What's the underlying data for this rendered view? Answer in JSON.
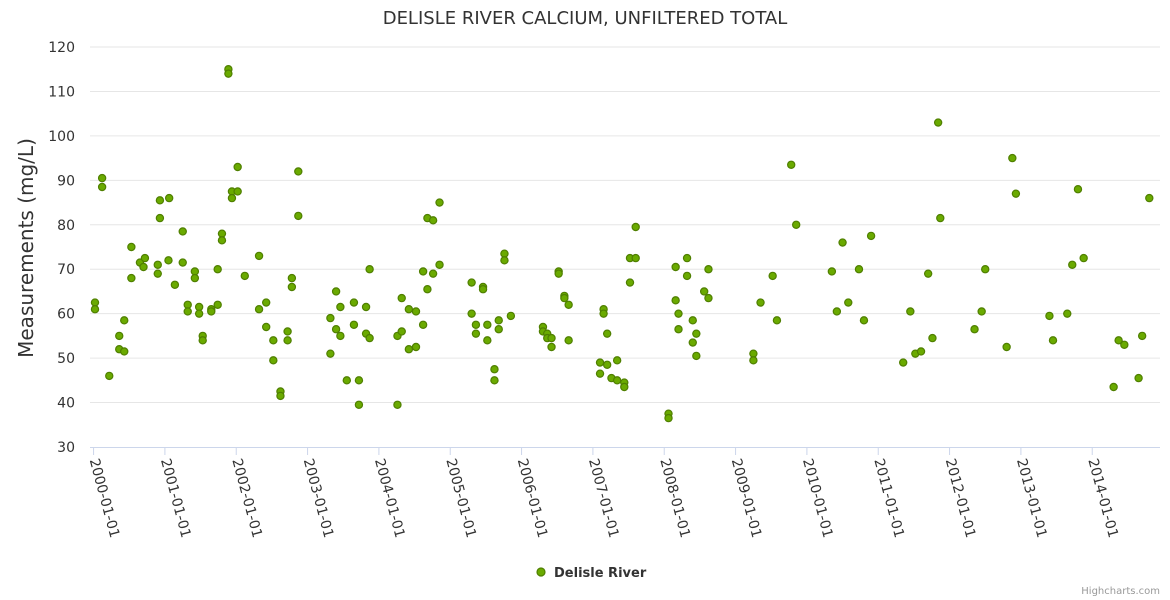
{
  "chart_data": {
    "type": "scatter",
    "title": "DELISLE RIVER CALCIUM, UNFILTERED TOTAL",
    "ylabel": "Measurements (mg/L)",
    "xlabel": "",
    "ylim": [
      30,
      120
    ],
    "yticks": [
      30,
      40,
      50,
      60,
      70,
      80,
      90,
      100,
      110,
      120
    ],
    "xlim": [
      1999.95,
      2014.95
    ],
    "xticks": [
      {
        "value": 2000,
        "label": "2000-01-01"
      },
      {
        "value": 2001,
        "label": "2001-01-01"
      },
      {
        "value": 2002,
        "label": "2002-01-01"
      },
      {
        "value": 2003,
        "label": "2003-01-01"
      },
      {
        "value": 2004,
        "label": "2004-01-01"
      },
      {
        "value": 2005,
        "label": "2005-01-01"
      },
      {
        "value": 2006,
        "label": "2006-01-01"
      },
      {
        "value": 2007,
        "label": "2007-01-01"
      },
      {
        "value": 2008,
        "label": "2008-01-01"
      },
      {
        "value": 2009,
        "label": "2009-01-01"
      },
      {
        "value": 2010,
        "label": "2010-01-01"
      },
      {
        "value": 2011,
        "label": "2011-01-01"
      },
      {
        "value": 2012,
        "label": "2012-01-01"
      },
      {
        "value": 2013,
        "label": "2013-01-01"
      },
      {
        "value": 2014,
        "label": "2014-01-01"
      }
    ],
    "grid": "horizontal",
    "legend_position": "bottom-center",
    "credits": "Highcharts.com",
    "series": [
      {
        "name": "Delisle River",
        "color": "#6aaa00",
        "stroke": "#4f7f00",
        "points": [
          [
            2000.02,
            62.5
          ],
          [
            2000.02,
            61.0
          ],
          [
            2000.12,
            90.5
          ],
          [
            2000.12,
            88.5
          ],
          [
            2000.22,
            46.0
          ],
          [
            2000.36,
            55.0
          ],
          [
            2000.36,
            52.0
          ],
          [
            2000.43,
            51.5
          ],
          [
            2000.43,
            58.5
          ],
          [
            2000.53,
            75.0
          ],
          [
            2000.53,
            68.0
          ],
          [
            2000.65,
            71.5
          ],
          [
            2000.7,
            70.5
          ],
          [
            2000.72,
            72.5
          ],
          [
            2000.9,
            71.0
          ],
          [
            2000.9,
            69.0
          ],
          [
            2000.93,
            85.5
          ],
          [
            2000.93,
            81.5
          ],
          [
            2001.05,
            72.0
          ],
          [
            2001.06,
            86.0
          ],
          [
            2001.14,
            66.5
          ],
          [
            2001.25,
            78.5
          ],
          [
            2001.25,
            71.5
          ],
          [
            2001.32,
            62.0
          ],
          [
            2001.32,
            60.5
          ],
          [
            2001.42,
            69.5
          ],
          [
            2001.42,
            68.0
          ],
          [
            2001.48,
            61.5
          ],
          [
            2001.48,
            60.0
          ],
          [
            2001.53,
            55.0
          ],
          [
            2001.53,
            54.0
          ],
          [
            2001.65,
            61.0
          ],
          [
            2001.65,
            60.5
          ],
          [
            2001.74,
            70.0
          ],
          [
            2001.74,
            62.0
          ],
          [
            2001.8,
            78.0
          ],
          [
            2001.8,
            76.5
          ],
          [
            2001.89,
            115.0
          ],
          [
            2001.89,
            114.0
          ],
          [
            2001.94,
            87.5
          ],
          [
            2001.94,
            86.0
          ],
          [
            2002.02,
            93.0
          ],
          [
            2002.02,
            87.5
          ],
          [
            2002.12,
            68.5
          ],
          [
            2002.32,
            73.0
          ],
          [
            2002.32,
            61.0
          ],
          [
            2002.42,
            62.5
          ],
          [
            2002.42,
            57.0
          ],
          [
            2002.52,
            54.0
          ],
          [
            2002.52,
            49.5
          ],
          [
            2002.62,
            42.5
          ],
          [
            2002.62,
            41.5
          ],
          [
            2002.72,
            56.0
          ],
          [
            2002.72,
            54.0
          ],
          [
            2002.78,
            68.0
          ],
          [
            2002.78,
            66.0
          ],
          [
            2002.87,
            92.0
          ],
          [
            2002.87,
            82.0
          ],
          [
            2003.32,
            59.0
          ],
          [
            2003.32,
            51.0
          ],
          [
            2003.4,
            65.0
          ],
          [
            2003.4,
            56.5
          ],
          [
            2003.46,
            55.0
          ],
          [
            2003.46,
            61.5
          ],
          [
            2003.55,
            45.0
          ],
          [
            2003.65,
            62.5
          ],
          [
            2003.65,
            57.5
          ],
          [
            2003.72,
            45.0
          ],
          [
            2003.72,
            39.5
          ],
          [
            2003.82,
            61.5
          ],
          [
            2003.82,
            55.5
          ],
          [
            2003.87,
            70.0
          ],
          [
            2003.87,
            54.5
          ],
          [
            2004.26,
            55.0
          ],
          [
            2004.26,
            39.5
          ],
          [
            2004.32,
            63.5
          ],
          [
            2004.32,
            56.0
          ],
          [
            2004.42,
            61.0
          ],
          [
            2004.42,
            52.0
          ],
          [
            2004.52,
            60.5
          ],
          [
            2004.52,
            52.5
          ],
          [
            2004.62,
            69.5
          ],
          [
            2004.62,
            57.5
          ],
          [
            2004.68,
            81.5
          ],
          [
            2004.68,
            65.5
          ],
          [
            2004.76,
            81.0
          ],
          [
            2004.76,
            69.0
          ],
          [
            2004.85,
            85.0
          ],
          [
            2004.85,
            71.0
          ],
          [
            2005.3,
            67.0
          ],
          [
            2005.3,
            60.0
          ],
          [
            2005.36,
            57.5
          ],
          [
            2005.36,
            55.5
          ],
          [
            2005.46,
            66.0
          ],
          [
            2005.46,
            65.5
          ],
          [
            2005.52,
            57.5
          ],
          [
            2005.52,
            54.0
          ],
          [
            2005.62,
            47.5
          ],
          [
            2005.62,
            45.0
          ],
          [
            2005.68,
            58.5
          ],
          [
            2005.68,
            56.5
          ],
          [
            2005.76,
            73.5
          ],
          [
            2005.76,
            72.0
          ],
          [
            2005.85,
            59.5
          ],
          [
            2006.3,
            57.0
          ],
          [
            2006.3,
            56.0
          ],
          [
            2006.36,
            55.5
          ],
          [
            2006.36,
            54.5
          ],
          [
            2006.42,
            54.5
          ],
          [
            2006.42,
            52.5
          ],
          [
            2006.52,
            69.5
          ],
          [
            2006.52,
            69.0
          ],
          [
            2006.6,
            64.0
          ],
          [
            2006.6,
            63.5
          ],
          [
            2006.66,
            62.0
          ],
          [
            2006.66,
            54.0
          ],
          [
            2007.1,
            49.0
          ],
          [
            2007.1,
            46.5
          ],
          [
            2007.15,
            61.0
          ],
          [
            2007.15,
            60.0
          ],
          [
            2007.2,
            55.5
          ],
          [
            2007.2,
            48.5
          ],
          [
            2007.26,
            45.5
          ],
          [
            2007.34,
            49.5
          ],
          [
            2007.34,
            45.0
          ],
          [
            2007.44,
            44.5
          ],
          [
            2007.44,
            43.5
          ],
          [
            2007.52,
            72.5
          ],
          [
            2007.52,
            67.0
          ],
          [
            2007.6,
            79.5
          ],
          [
            2007.6,
            72.5
          ],
          [
            2008.06,
            37.5
          ],
          [
            2008.06,
            36.5
          ],
          [
            2008.16,
            70.5
          ],
          [
            2008.16,
            63.0
          ],
          [
            2008.2,
            60.0
          ],
          [
            2008.2,
            56.5
          ],
          [
            2008.32,
            72.5
          ],
          [
            2008.32,
            68.5
          ],
          [
            2008.4,
            58.5
          ],
          [
            2008.4,
            53.5
          ],
          [
            2008.45,
            55.5
          ],
          [
            2008.45,
            50.5
          ],
          [
            2008.56,
            65.0
          ],
          [
            2008.62,
            70.0
          ],
          [
            2008.62,
            63.5
          ],
          [
            2009.25,
            51.0
          ],
          [
            2009.25,
            49.5
          ],
          [
            2009.35,
            62.5
          ],
          [
            2009.52,
            68.5
          ],
          [
            2009.58,
            58.5
          ],
          [
            2009.78,
            93.5
          ],
          [
            2009.85,
            80.0
          ],
          [
            2010.35,
            69.5
          ],
          [
            2010.42,
            60.5
          ],
          [
            2010.5,
            76.0
          ],
          [
            2010.58,
            62.5
          ],
          [
            2010.73,
            70.0
          ],
          [
            2010.8,
            58.5
          ],
          [
            2010.9,
            77.5
          ],
          [
            2011.35,
            49.0
          ],
          [
            2011.45,
            60.5
          ],
          [
            2011.52,
            51.0
          ],
          [
            2011.6,
            51.5
          ],
          [
            2011.7,
            69.0
          ],
          [
            2011.76,
            54.5
          ],
          [
            2011.84,
            103.0
          ],
          [
            2011.87,
            81.5
          ],
          [
            2012.35,
            56.5
          ],
          [
            2012.45,
            60.5
          ],
          [
            2012.5,
            70.0
          ],
          [
            2012.8,
            52.5
          ],
          [
            2012.88,
            95.0
          ],
          [
            2012.93,
            87.0
          ],
          [
            2013.4,
            59.5
          ],
          [
            2013.45,
            54.0
          ],
          [
            2013.65,
            60.0
          ],
          [
            2013.72,
            71.0
          ],
          [
            2013.8,
            88.0
          ],
          [
            2013.88,
            72.5
          ],
          [
            2014.3,
            43.5
          ],
          [
            2014.37,
            54.0
          ],
          [
            2014.45,
            53.0
          ],
          [
            2014.65,
            45.5
          ],
          [
            2014.7,
            55.0
          ],
          [
            2014.8,
            86.0
          ]
        ]
      }
    ]
  }
}
